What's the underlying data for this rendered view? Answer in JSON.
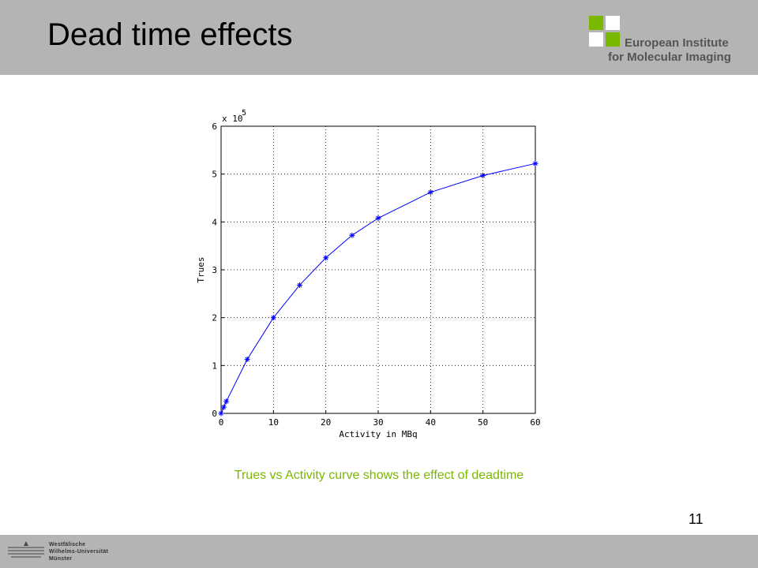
{
  "slide": {
    "title": "Dead time effects",
    "caption": "Trues vs Activity curve shows the effect of deadtime",
    "page_number": "11"
  },
  "logo": {
    "line1": "European Institute",
    "line2": "for Molecular Imaging",
    "colors": {
      "green": "#7ab800",
      "white": "#ffffff",
      "text": "#555555"
    }
  },
  "university": {
    "line1": "Westfälische",
    "line2": "Wilhelms-Universität",
    "line3": "Münster"
  },
  "colors": {
    "bar": "#b4b4b2",
    "caption": "#7ab800",
    "series": "#0000ff"
  },
  "chart_data": {
    "type": "line",
    "xlabel": "Activity in MBq",
    "ylabel": "Trues",
    "y_multiplier": "x 10",
    "y_exponent": "5",
    "xlim": [
      0,
      60
    ],
    "ylim": [
      0,
      6
    ],
    "xticks": [
      0,
      10,
      20,
      30,
      40,
      50,
      60
    ],
    "yticks": [
      0,
      1,
      2,
      3,
      4,
      5,
      6
    ],
    "grid": true,
    "marker": "asterisk",
    "series": [
      {
        "x": [
          0,
          0.5,
          1,
          5,
          10,
          15,
          20,
          25,
          30,
          40,
          50,
          60
        ],
        "y": [
          0,
          0.13,
          0.25,
          1.13,
          2.0,
          2.68,
          3.25,
          3.72,
          4.08,
          4.62,
          4.97,
          5.22
        ]
      }
    ]
  }
}
